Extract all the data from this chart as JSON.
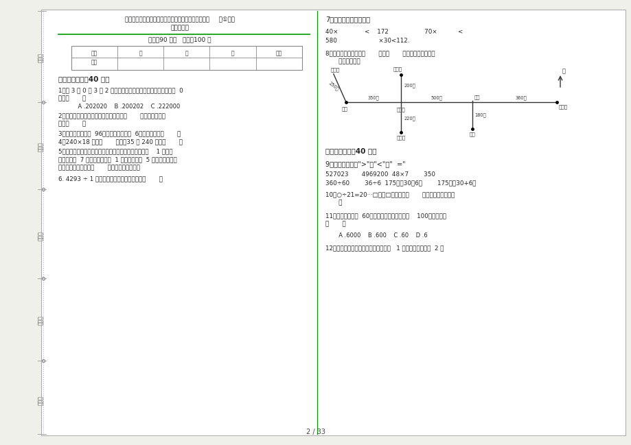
{
  "bg_color": "#f0f0eb",
  "page_bg": "#ffffff",
  "title_line1": "部编版专题四年级上学期小学数学期末真题模拟试卷卷     （①）知",
  "title_line2": "识练习试卷",
  "time_line": "时间：90 分钟   满分：100 分",
  "section1_title": "一、基础练习（40 分）",
  "section2_title": "二、综合练习（40 分）",
  "q1a": "1．用 3 个 0 和 3 个 2 组成六位数，读这个六位数时只要读一个  0",
  "q1b": "的是（       ）",
  "q1_opts": "    A .202020    B .200202    C .222000",
  "q2a": "2．在同一个平面内不相交的两条直线叫做       ，也可以说这两",
  "q2b": "条直线       。",
  "q3": "3．两个因数的积是  96，其中一个因数是  6，另一个因数是       。",
  "q4": "4．240×18 的积是       位数，35 个 240 的和是       。",
  "q5a": "5．小明感冒了，吃完药后要赶快休息。他找杯子倒开水    1 分钟，",
  "q5b": "等开水变温  7 分钟，找感冒药  1 分钟，量体温  5 分钟。小明合理",
  "q5c": "安排以上事情，最少要       分钟才能尽快休息。",
  "q6": "6. 4293 ÷ 1 口，要使商是二位数，口可以填       。",
  "q7_title": "7．横线上最大能填几？",
  "q7_line1": "40×              <    172                   70×           <",
  "q7_line2": "580                      ×30<112.",
  "q8a": "8．看下图，李文从家向       方向走       米到超市，再向东走",
  "q8b": "       米到明明家。",
  "q9_title": "9．在横线里填上\">\"、\"<\"或\"  =\"",
  "q9_line1": "527023       4969200  48×7        350",
  "q9_line2": "360÷60        36÷6  175－（30－6）        175－（30+6）",
  "q10a": "10．○÷21=20···□，在□里最大能填       ，这时被除数最大是",
  "q10b": "       。",
  "q11a": "11．两数相除商为  60，如果被除数和除数都乘    100，那么商是",
  "q11b": "（       ）",
  "q11_opts": "  A .6000    B .600    C .60    D .6",
  "q12": "12．一个杯子杯口朝上放在桌上，翻动   1 次杯口朝下，翻动  2 次",
  "page_num": "2 / 33",
  "sidebar_labels": [
    "考号：",
    "考场：",
    "姓名：",
    "班级：",
    "学校："
  ],
  "table_headers": [
    "题号",
    "一",
    "二",
    "三",
    "总分"
  ],
  "table_row_label": "得分",
  "map_labels": {
    "liwenjia": "李文家",
    "xiaoqiangjia": "小强家",
    "chaoshi": "超市",
    "wenhuagong": "文化宫",
    "tushuguan": "图书馆",
    "xuexiao": "学校",
    "mingmingjia": "明明家",
    "shangdian": "商店",
    "bei": "北",
    "d250": "250米",
    "d350": "350米",
    "d200": "200米",
    "d500": "500米",
    "d360": "360米",
    "d220": "220米",
    "d180": "180米"
  }
}
